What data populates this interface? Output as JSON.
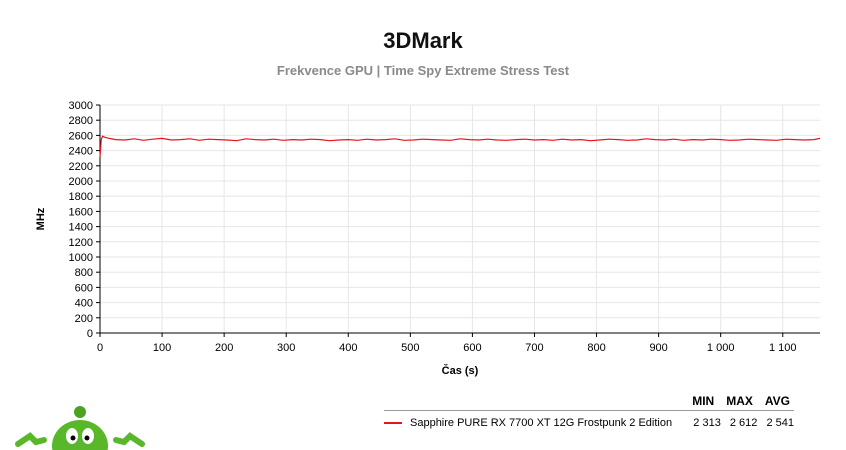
{
  "chart_data": {
    "type": "line",
    "title": "3DMark",
    "subtitle": "Frekvence GPU | Time Spy Extreme Stress Test",
    "xlabel": "Čas (s)",
    "ylabel": "MHz",
    "xlim": [
      0,
      1160
    ],
    "ylim": [
      0,
      3000
    ],
    "x_ticks": [
      0,
      100,
      200,
      300,
      400,
      500,
      600,
      700,
      800,
      900,
      1000,
      1100
    ],
    "x_tick_labels": [
      "0",
      "100",
      "200",
      "300",
      "400",
      "500",
      "600",
      "700",
      "800",
      "900",
      "1 000",
      "1 100"
    ],
    "y_ticks": [
      0,
      200,
      400,
      600,
      800,
      1000,
      1200,
      1400,
      1600,
      1800,
      2000,
      2200,
      2400,
      2600,
      2800,
      3000
    ],
    "grid": true,
    "legend_position": "bottom-right",
    "series": [
      {
        "name": "Sapphire PURE RX 7700 XT 12G Frostpunk 2 Edition",
        "color": "#e8141c",
        "x": [
          0,
          2,
          4,
          8,
          15,
          25,
          40,
          55,
          70,
          85,
          100,
          115,
          130,
          145,
          160,
          175,
          190,
          205,
          220,
          235,
          250,
          265,
          280,
          295,
          310,
          325,
          340,
          355,
          370,
          385,
          400,
          415,
          430,
          445,
          460,
          475,
          490,
          505,
          520,
          535,
          550,
          565,
          580,
          595,
          610,
          625,
          640,
          655,
          670,
          685,
          700,
          715,
          730,
          745,
          760,
          775,
          790,
          805,
          820,
          835,
          850,
          865,
          880,
          895,
          910,
          925,
          940,
          955,
          970,
          985,
          1000,
          1015,
          1030,
          1045,
          1060,
          1075,
          1090,
          1105,
          1120,
          1135,
          1150,
          1160
        ],
        "y": [
          2313,
          2540,
          2590,
          2575,
          2560,
          2545,
          2540,
          2555,
          2535,
          2550,
          2560,
          2540,
          2545,
          2555,
          2535,
          2550,
          2545,
          2540,
          2530,
          2555,
          2545,
          2540,
          2550,
          2535,
          2545,
          2540,
          2550,
          2545,
          2530,
          2540,
          2545,
          2535,
          2550,
          2540,
          2545,
          2555,
          2535,
          2540,
          2550,
          2545,
          2540,
          2535,
          2555,
          2545,
          2540,
          2550,
          2540,
          2535,
          2545,
          2550,
          2540,
          2545,
          2535,
          2550,
          2540,
          2545,
          2530,
          2540,
          2550,
          2545,
          2535,
          2540,
          2555,
          2545,
          2540,
          2550,
          2535,
          2545,
          2540,
          2550,
          2545,
          2535,
          2540,
          2550,
          2545,
          2540,
          2535,
          2550,
          2545,
          2540,
          2545,
          2560
        ]
      }
    ]
  },
  "legend": {
    "headers": {
      "min": "MIN",
      "max": "MAX",
      "avg": "AVG"
    },
    "entry": {
      "name": "Sapphire PURE RX 7700 XT 12G Frostpunk 2 Edition",
      "min": "2 313",
      "max": "2 612",
      "avg": "2 541"
    }
  },
  "mascot_icon": "green-alien-mascot"
}
